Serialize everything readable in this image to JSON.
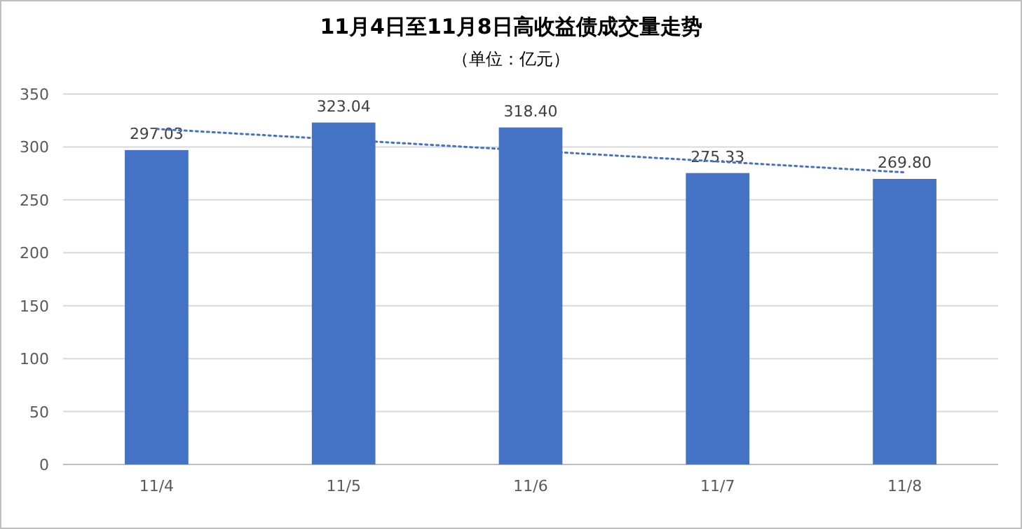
{
  "chart_data": {
    "type": "bar",
    "title": "11月4日至11月8日高收益债成交量走势",
    "subtitle": "（单位：亿元）",
    "categories": [
      "11/4",
      "11/5",
      "11/6",
      "11/7",
      "11/8"
    ],
    "series": [
      {
        "color": "#4472c4",
        "values": [
          297.03,
          323.04,
          318.4,
          275.33,
          269.8
        ],
        "value_labels": [
          "297.03",
          "323.04",
          "318.40",
          "275.33",
          "269.80"
        ]
      },
      {
        "type": "line",
        "color": "#4472c4",
        "line_style": "dotted",
        "marker": "none",
        "x": [
          "11/4",
          "11/8"
        ],
        "values": [
          317,
          276
        ]
      }
    ],
    "ylim": [
      0,
      350
    ],
    "yticks": [
      0,
      50,
      100,
      150,
      200,
      250,
      300,
      350
    ],
    "grid": "y"
  }
}
